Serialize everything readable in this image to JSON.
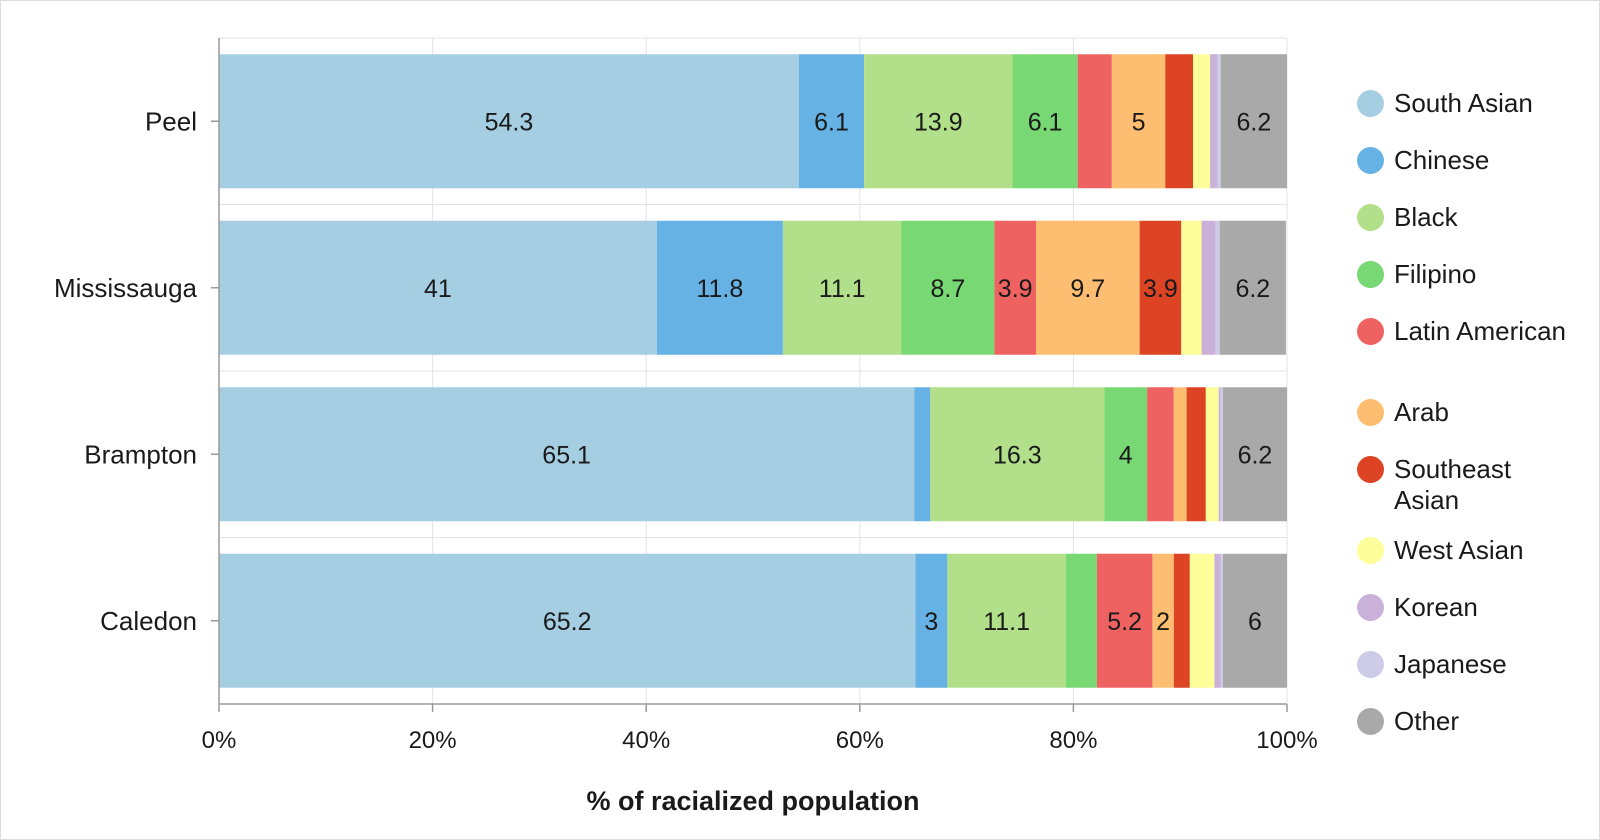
{
  "chart_data": {
    "type": "bar",
    "orientation": "horizontal",
    "stacked": true,
    "categories": [
      "Peel",
      "Mississauga",
      "Brampton",
      "Caledon"
    ],
    "xlabel": "% of racialized population",
    "xlim": [
      0,
      100
    ],
    "x_ticks": [
      "0%",
      "20%",
      "40%",
      "60%",
      "80%",
      "100%"
    ],
    "grid": true,
    "legend_position": "right",
    "series": [
      {
        "name": "South Asian",
        "color": "#a6cee3",
        "values": [
          54.3,
          41,
          65.1,
          65.2
        ],
        "labels": [
          "54.3",
          "41",
          "65.1",
          "65.2"
        ]
      },
      {
        "name": "Chinese",
        "color": "#67b2e4",
        "values": [
          6.1,
          11.8,
          1.5,
          3
        ],
        "labels": [
          "6.1",
          "11.8",
          "",
          "3"
        ]
      },
      {
        "name": "Black",
        "color": "#b2e08a",
        "values": [
          13.9,
          11.1,
          16.3,
          11.1
        ],
        "labels": [
          "13.9",
          "11.1",
          "16.3",
          "11.1"
        ]
      },
      {
        "name": "Filipino",
        "color": "#78d873",
        "values": [
          6.1,
          8.7,
          4,
          2.9
        ],
        "labels": [
          "6.1",
          "8.7",
          "4",
          ""
        ]
      },
      {
        "name": "Latin American",
        "color": "#ef6262",
        "values": [
          3.2,
          3.9,
          2.5,
          5.2
        ],
        "labels": [
          "",
          "3.9",
          "",
          "5.2"
        ]
      },
      {
        "name": "Arab",
        "color": "#fdbe72",
        "values": [
          5,
          9.7,
          1.2,
          2
        ],
        "labels": [
          "5",
          "9.7",
          "",
          "2"
        ]
      },
      {
        "name": "Southeast Asian",
        "color": "#dc4424",
        "values": [
          2.6,
          3.9,
          1.8,
          1.5
        ],
        "labels": [
          "",
          "3.9",
          "",
          ""
        ]
      },
      {
        "name": "West Asian",
        "color": "#fefe9a",
        "values": [
          1.6,
          1.9,
          1.2,
          2.3
        ],
        "labels": [
          "",
          "",
          "",
          ""
        ]
      },
      {
        "name": "Korean",
        "color": "#c9b1d9",
        "values": [
          0.7,
          1.3,
          0.2,
          0.6
        ],
        "labels": [
          "",
          "",
          "",
          ""
        ]
      },
      {
        "name": "Japanese",
        "color": "#cccce9",
        "values": [
          0.3,
          0.4,
          0.2,
          0.2
        ],
        "labels": [
          "",
          "",
          "",
          ""
        ]
      },
      {
        "name": "Other",
        "color": "#a9a9a9",
        "values": [
          6.2,
          6.2,
          6.2,
          6.0
        ],
        "labels": [
          "6.2",
          "6.2",
          "6.2",
          "6"
        ]
      }
    ]
  },
  "legend": [
    {
      "label": "South Asian",
      "color": "#a6cee3"
    },
    {
      "label": "Chinese",
      "color": "#67b2e4"
    },
    {
      "label": "Black",
      "color": "#b2e08a"
    },
    {
      "label": "Filipino",
      "color": "#78d873"
    },
    {
      "label": "Latin American",
      "color": "#ef6262"
    },
    {
      "label": "Arab",
      "color": "#fdbe72"
    },
    {
      "label": "Southeast Asian",
      "color": "#dc4424"
    },
    {
      "label": "West Asian",
      "color": "#fefe9a"
    },
    {
      "label": "Korean",
      "color": "#c9b1d9"
    },
    {
      "label": "Japanese",
      "color": "#cccce9"
    },
    {
      "label": "Other",
      "color": "#a9a9a9"
    }
  ]
}
